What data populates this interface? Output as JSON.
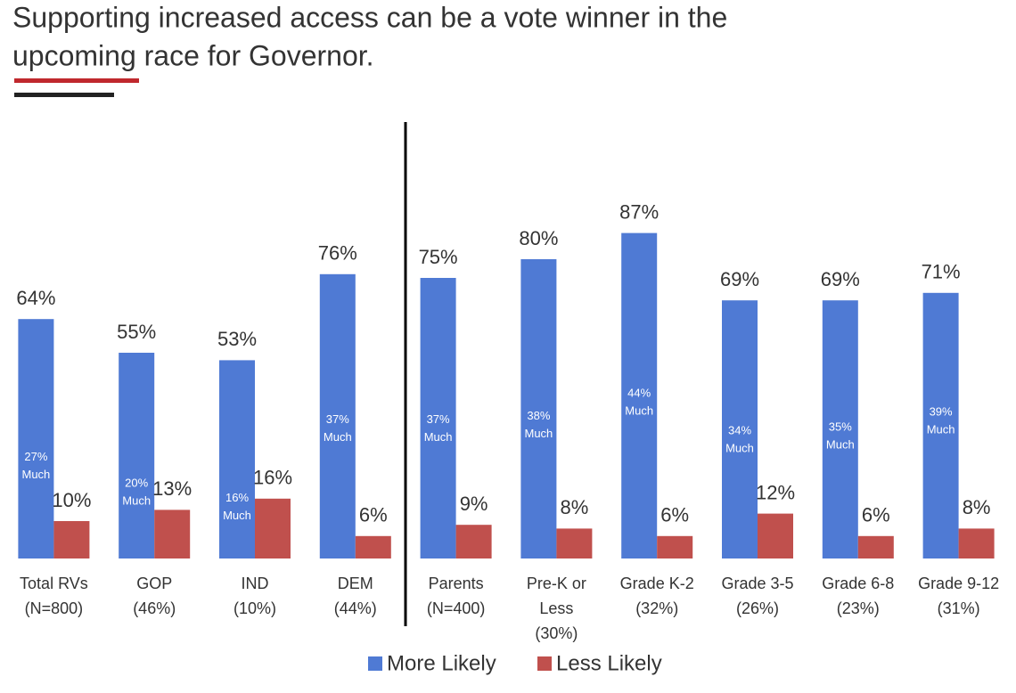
{
  "chart_data": {
    "type": "bar",
    "title": [
      "Supporting increased access can be a vote winner in the",
      "upcoming race for Governor."
    ],
    "categories": [
      [
        "Total RVs",
        "(N=800)"
      ],
      [
        "GOP",
        "(46%)"
      ],
      [
        "IND",
        "(10%)"
      ],
      [
        "DEM",
        "(44%)"
      ],
      [
        "Parents",
        "(N=400)"
      ],
      [
        "Pre-K or",
        "Less",
        "(30%)"
      ],
      [
        "Grade K-2",
        "(32%)"
      ],
      [
        "Grade 3-5",
        "(26%)"
      ],
      [
        "Grade 6-8",
        "(23%)"
      ],
      [
        "Grade 9-12",
        "(31%)"
      ]
    ],
    "series": [
      {
        "name": "More Likely",
        "color": "#4f7ad4",
        "values": [
          64,
          55,
          53,
          76,
          75,
          80,
          87,
          69,
          69,
          71
        ],
        "value_labels": [
          "64%",
          "55%",
          "53%",
          "76%",
          "75%",
          "80%",
          "87%",
          "69%",
          "69%",
          "71%"
        ],
        "much_values": [
          27,
          20,
          16,
          37,
          37,
          38,
          44,
          34,
          35,
          39
        ],
        "much_labels": [
          "27%",
          "20%",
          "16%",
          "37%",
          "37%",
          "38%",
          "44%",
          "34%",
          "35%",
          "39%"
        ],
        "much_text": "Much"
      },
      {
        "name": "Less Likely",
        "color": "#c0504d",
        "values": [
          10,
          13,
          16,
          6,
          9,
          8,
          6,
          12,
          6,
          8
        ],
        "value_labels": [
          "10%",
          "13%",
          "16%",
          "6%",
          "9%",
          "8%",
          "6%",
          "12%",
          "6%",
          "8%"
        ]
      }
    ],
    "ylim": [
      0,
      100
    ],
    "legend": "bottom"
  }
}
